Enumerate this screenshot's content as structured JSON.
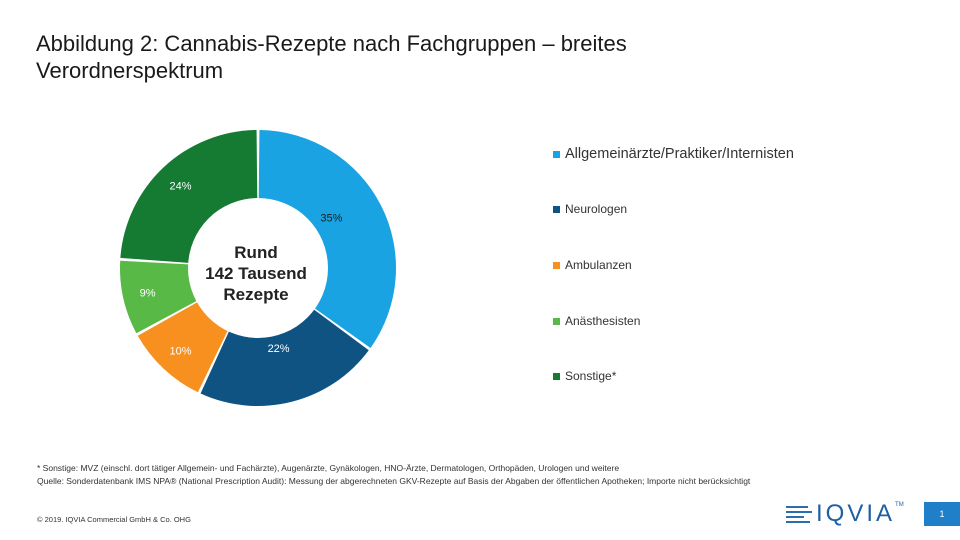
{
  "title": "Abbildung 2: Cannabis-Rezepte nach Fachgruppen – breites Verordnerspektrum",
  "center_label": [
    "Rund",
    "142 Tausend",
    "Rezepte"
  ],
  "colors": {
    "allgemein": "#1aa3e3",
    "neuro": "#0f5383",
    "ambulanz": "#f7901e",
    "anaest": "#58b947",
    "sonstige": "#157a32"
  },
  "chart_data": {
    "type": "pie",
    "donut": true,
    "title": "Abbildung 2: Cannabis-Rezepte nach Fachgruppen – breites Verordnerspektrum",
    "categories": [
      "Allgemeinärzte/Praktiker/Internisten",
      "Neurologen",
      "Ambulanzen",
      "Anästhesisten",
      "Sonstige*"
    ],
    "values": [
      35,
      22,
      10,
      9,
      24
    ],
    "labels": [
      "35%",
      "22%",
      "10%",
      "9%",
      "24%"
    ],
    "legend_position": "right"
  },
  "legend": [
    {
      "label": "Allgemeinärzte/Praktiker/Internisten",
      "color": "#1aa3e3"
    },
    {
      "label": "Neurologen",
      "color": "#0f5383"
    },
    {
      "label": "Ambulanzen",
      "color": "#f7901e"
    },
    {
      "label": "Anästhesisten",
      "color": "#58b947"
    },
    {
      "label": "Sonstige*",
      "color": "#157a32"
    }
  ],
  "footnotes": {
    "line1": "* Sonstige: MVZ (einschl. dort tätiger Allgemein- und Fachärzte), Augenärzte, Gynäkologen, HNO-Ärzte, Dermatologen, Orthopäden, Urologen und weitere",
    "line2": "Quelle: Sonderdatenbank IMS NPA® (National Prescription Audit): Messung der abgerechneten GKV-Rezepte auf Basis der Abgaben der öffentlichen Apotheken; Importe nicht berücksichtigt"
  },
  "copyright": "© 2019. IQVIA Commercial GmbH & Co. OHG",
  "logo_text": "IQVIA",
  "logo_tm": "TM",
  "page_number": "1"
}
